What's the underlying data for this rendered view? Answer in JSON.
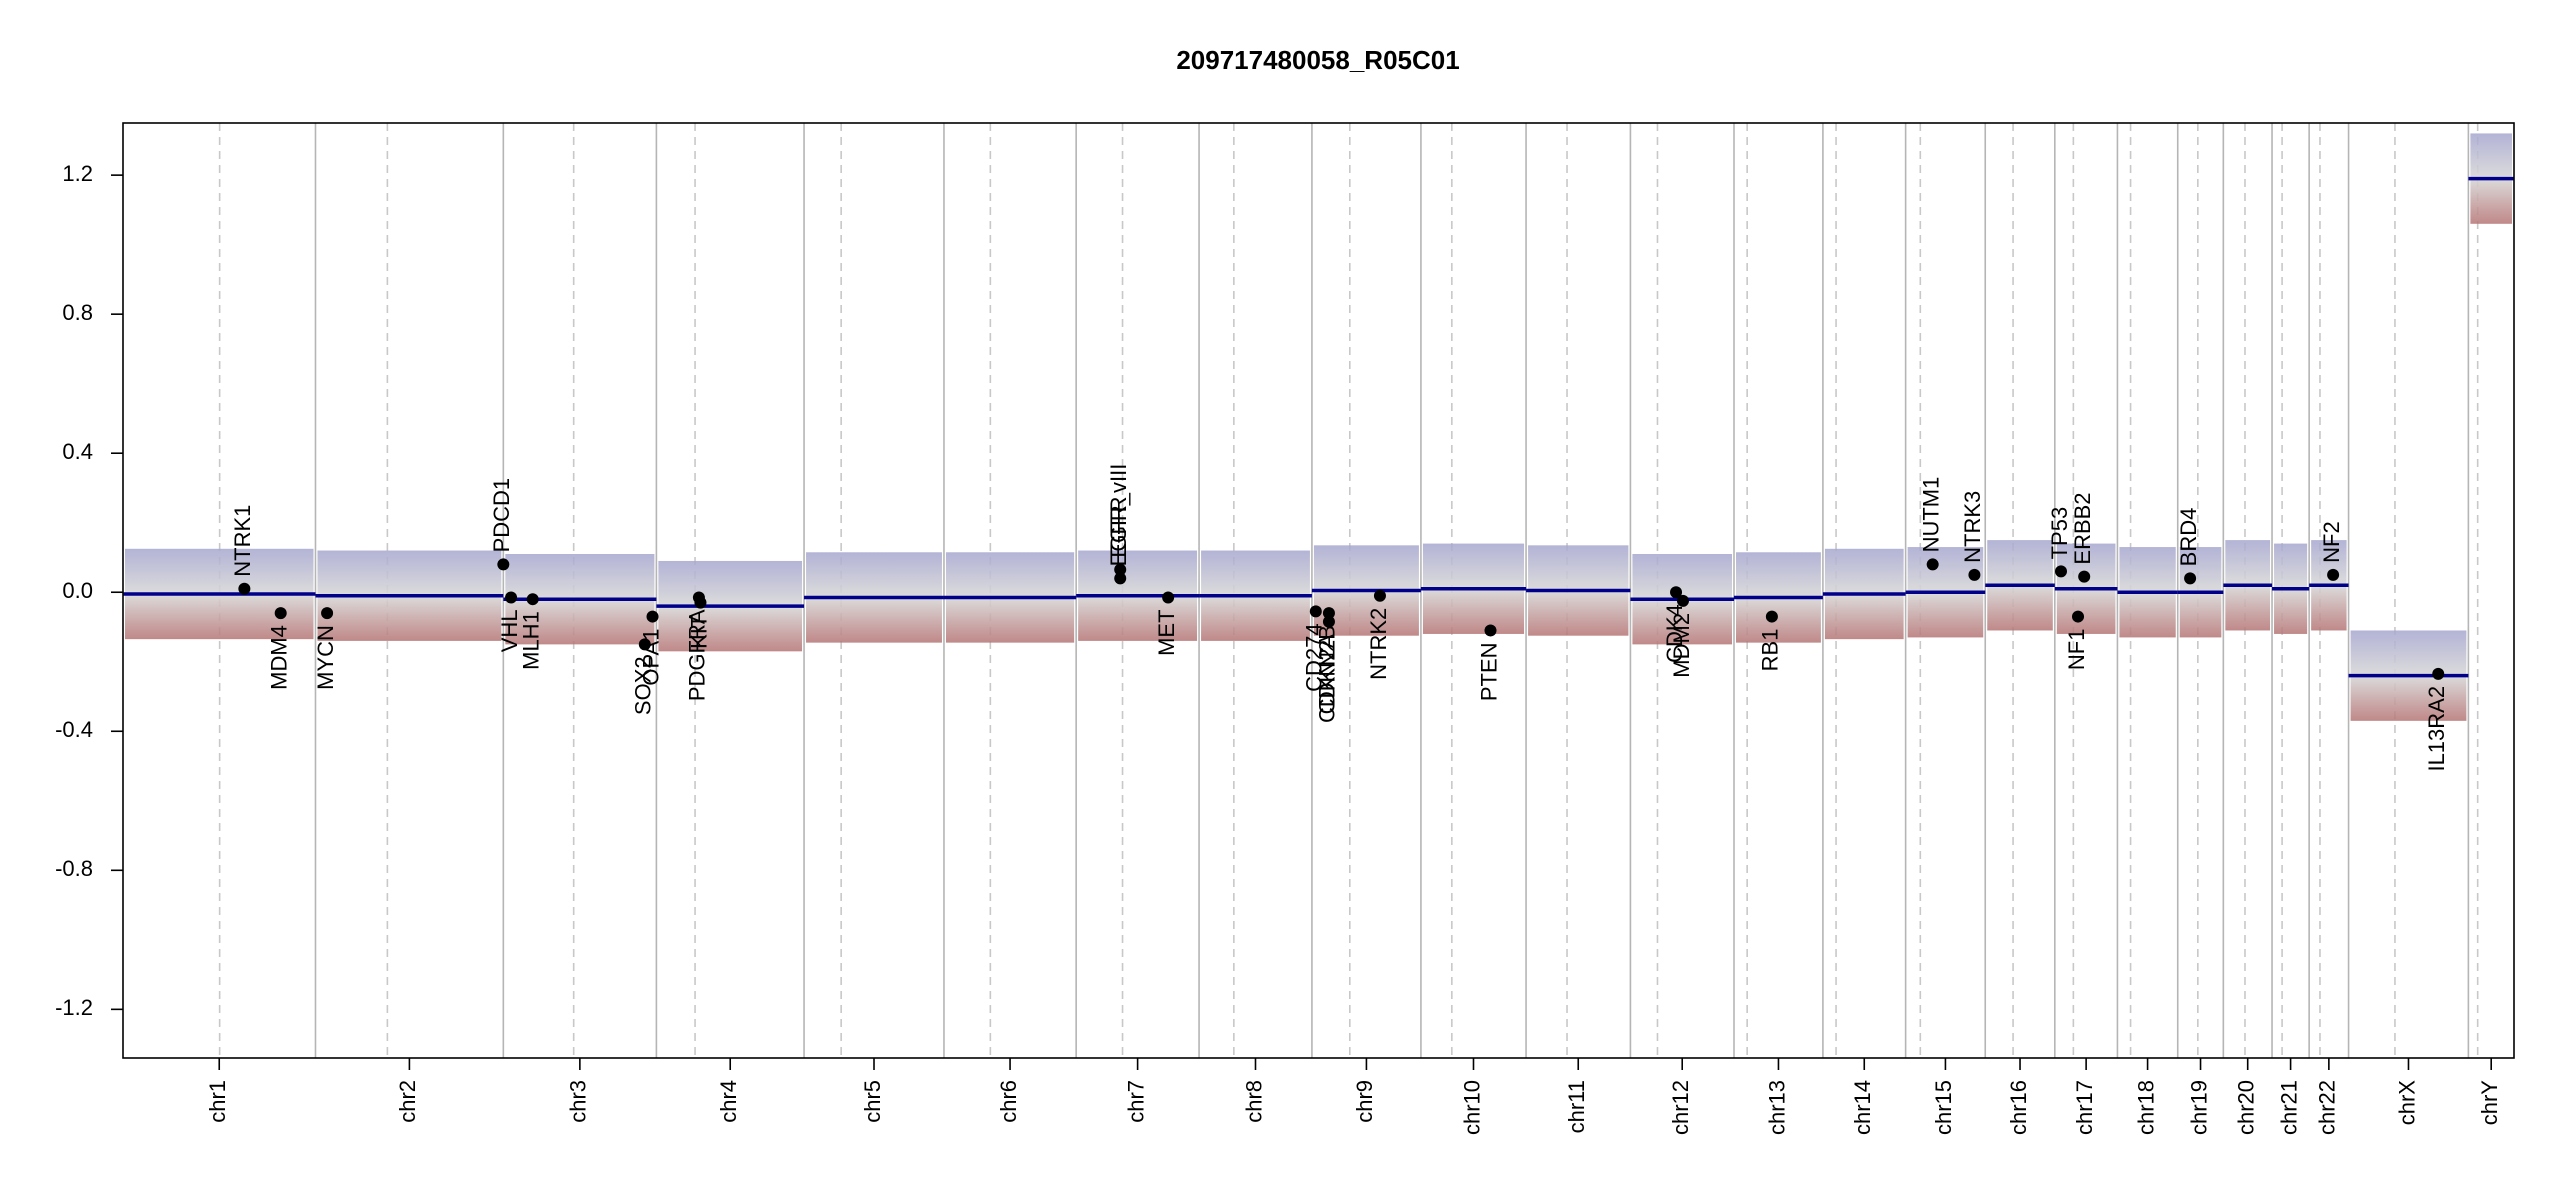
{
  "chart_data": {
    "type": "copy_number",
    "title": "209717480058_R05C01",
    "ylim": [
      -1.34,
      1.35
    ],
    "yticks": [
      -1.2,
      -0.8,
      -0.4,
      {
        "value": 0,
        "label": "0.0"
      },
      0.4,
      0.8,
      1.2
    ],
    "xlim": [
      0,
      3093
    ],
    "segment_color": "#00008b",
    "gene_color": "#000000",
    "gain_color": "#a6a6cf",
    "loss_color": "#b57474",
    "chromosomes": [
      {
        "name": "chr1",
        "length": 249,
        "centromere": 125,
        "segment": -0.005
      },
      {
        "name": "chr2",
        "length": 243,
        "centromere": 93,
        "segment": -0.01
      },
      {
        "name": "chr3",
        "length": 198,
        "centromere": 91,
        "segment": -0.02
      },
      {
        "name": "chr4",
        "length": 191,
        "centromere": 50,
        "segment": -0.04
      },
      {
        "name": "chr5",
        "length": 181,
        "centromere": 48,
        "segment": -0.015
      },
      {
        "name": "chr6",
        "length": 171,
        "centromere": 60,
        "segment": -0.015
      },
      {
        "name": "chr7",
        "length": 159,
        "centromere": 60,
        "segment": -0.01
      },
      {
        "name": "chr8",
        "length": 146,
        "centromere": 45,
        "segment": -0.01
      },
      {
        "name": "chr9",
        "length": 141,
        "centromere": 49,
        "segment": 0.005
      },
      {
        "name": "chr10",
        "length": 136,
        "centromere": 40,
        "segment": 0.01
      },
      {
        "name": "chr11",
        "length": 135,
        "centromere": 53,
        "segment": 0.005
      },
      {
        "name": "chr12",
        "length": 134,
        "centromere": 35,
        "segment": -0.02
      },
      {
        "name": "chr13",
        "length": 115,
        "centromere": 17,
        "segment": -0.015
      },
      {
        "name": "chr14",
        "length": 107,
        "centromere": 17,
        "segment": -0.005
      },
      {
        "name": "chr15",
        "length": 103,
        "centromere": 19,
        "segment": 0.0
      },
      {
        "name": "chr16",
        "length": 90,
        "centromere": 36,
        "segment": 0.02
      },
      {
        "name": "chr17",
        "length": 81,
        "centromere": 24,
        "segment": 0.01
      },
      {
        "name": "chr18",
        "length": 78,
        "centromere": 17,
        "segment": 0.0
      },
      {
        "name": "chr19",
        "length": 59,
        "centromere": 26,
        "segment": 0.0
      },
      {
        "name": "chr20",
        "length": 63,
        "centromere": 28,
        "segment": 0.02
      },
      {
        "name": "chr21",
        "length": 48,
        "centromere": 13,
        "segment": 0.01
      },
      {
        "name": "chr22",
        "length": 51,
        "centromere": 14,
        "segment": 0.02
      },
      {
        "name": "chrX",
        "length": 155,
        "centromere": 60,
        "segment": -0.24
      },
      {
        "name": "chrY",
        "length": 59,
        "centromere": 12,
        "segment": 1.19
      }
    ],
    "genes": [
      {
        "name": "NTRK1",
        "position": 157,
        "value": 0.01
      },
      {
        "name": "MDM4",
        "position": 204,
        "value": -0.06
      },
      {
        "name": "MYCN",
        "position": 264,
        "value": -0.06
      },
      {
        "name": "PDCD1",
        "position": 492,
        "value": 0.08
      },
      {
        "name": "VHL",
        "position": 502,
        "value": -0.015
      },
      {
        "name": "MLH1",
        "position": 530,
        "value": -0.02
      },
      {
        "name": "SOX2",
        "position": 675,
        "value": -0.15
      },
      {
        "name": "OPA1",
        "position": 685,
        "value": -0.07
      },
      {
        "name": "PDGFRA",
        "position": 745,
        "value": -0.015
      },
      {
        "name": "KIT",
        "position": 747,
        "value": -0.03
      },
      {
        "name": "EGFR",
        "position": 1290,
        "value": 0.065
      },
      {
        "name": "EGFR_vIII",
        "position": 1290,
        "value": 0.04
      },
      {
        "name": "MET",
        "position": 1352,
        "value": -0.015
      },
      {
        "name": "CD274",
        "position": 1543,
        "value": -0.055
      },
      {
        "name": "CDKN2A",
        "position": 1560,
        "value": -0.085
      },
      {
        "name": "CDKN2B",
        "position": 1560,
        "value": -0.06
      },
      {
        "name": "NTRK2",
        "position": 1626,
        "value": -0.01
      },
      {
        "name": "PTEN",
        "position": 1769,
        "value": -0.11
      },
      {
        "name": "CDK4",
        "position": 2009,
        "value": 0.0
      },
      {
        "name": "MDM2",
        "position": 2018,
        "value": -0.025
      },
      {
        "name": "RB1",
        "position": 2133,
        "value": -0.07
      },
      {
        "name": "NUTM1",
        "position": 2341,
        "value": 0.08
      },
      {
        "name": "NTRK3",
        "position": 2395,
        "value": 0.05
      },
      {
        "name": "TP53",
        "position": 2507,
        "value": 0.06
      },
      {
        "name": "NF1",
        "position": 2529,
        "value": -0.07
      },
      {
        "name": "ERBB2",
        "position": 2537,
        "value": 0.045
      },
      {
        "name": "BRD4",
        "position": 2674,
        "value": 0.04
      },
      {
        "name": "NF2",
        "position": 2859,
        "value": 0.05
      },
      {
        "name": "IL13RA2",
        "position": 2995,
        "value": -0.235
      }
    ]
  }
}
